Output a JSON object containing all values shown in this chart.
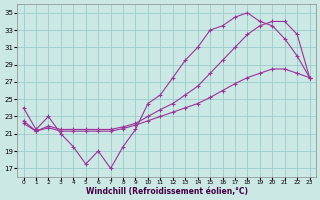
{
  "xlabel": "Windchill (Refroidissement éolien,°C)",
  "xlim": [
    -0.5,
    23.5
  ],
  "ylim": [
    16.0,
    36.0
  ],
  "xtick_vals": [
    0,
    1,
    2,
    3,
    4,
    5,
    6,
    7,
    8,
    9,
    10,
    11,
    12,
    13,
    14,
    15,
    16,
    17,
    18,
    19,
    20,
    21,
    22,
    23
  ],
  "ytick_vals": [
    17,
    19,
    21,
    23,
    25,
    27,
    29,
    31,
    33,
    35
  ],
  "bg_color": "#cce8e4",
  "line_color": "#993399",
  "grid_color": "#99cccc",
  "series1_y": [
    24.0,
    21.5,
    23.0,
    21.0,
    19.5,
    17.5,
    19.0,
    17.0,
    19.5,
    21.5,
    24.5,
    25.5,
    27.5,
    29.5,
    31.0,
    33.0,
    33.5,
    34.5,
    35.0,
    34.0,
    33.5,
    32.0,
    30.0,
    27.5
  ],
  "series2_y": [
    22.2,
    21.3,
    21.7,
    21.3,
    21.3,
    21.3,
    21.3,
    21.3,
    21.6,
    22.0,
    22.5,
    23.0,
    23.5,
    24.0,
    24.5,
    25.2,
    26.0,
    26.8,
    27.5,
    28.0,
    28.5,
    28.5,
    28.0,
    27.5
  ],
  "series3_y": [
    22.5,
    21.3,
    21.9,
    21.5,
    21.5,
    21.5,
    21.5,
    21.5,
    21.8,
    22.2,
    23.0,
    23.8,
    24.5,
    25.5,
    26.5,
    28.0,
    29.5,
    31.0,
    32.5,
    33.5,
    34.0,
    34.0,
    32.5,
    27.5
  ]
}
